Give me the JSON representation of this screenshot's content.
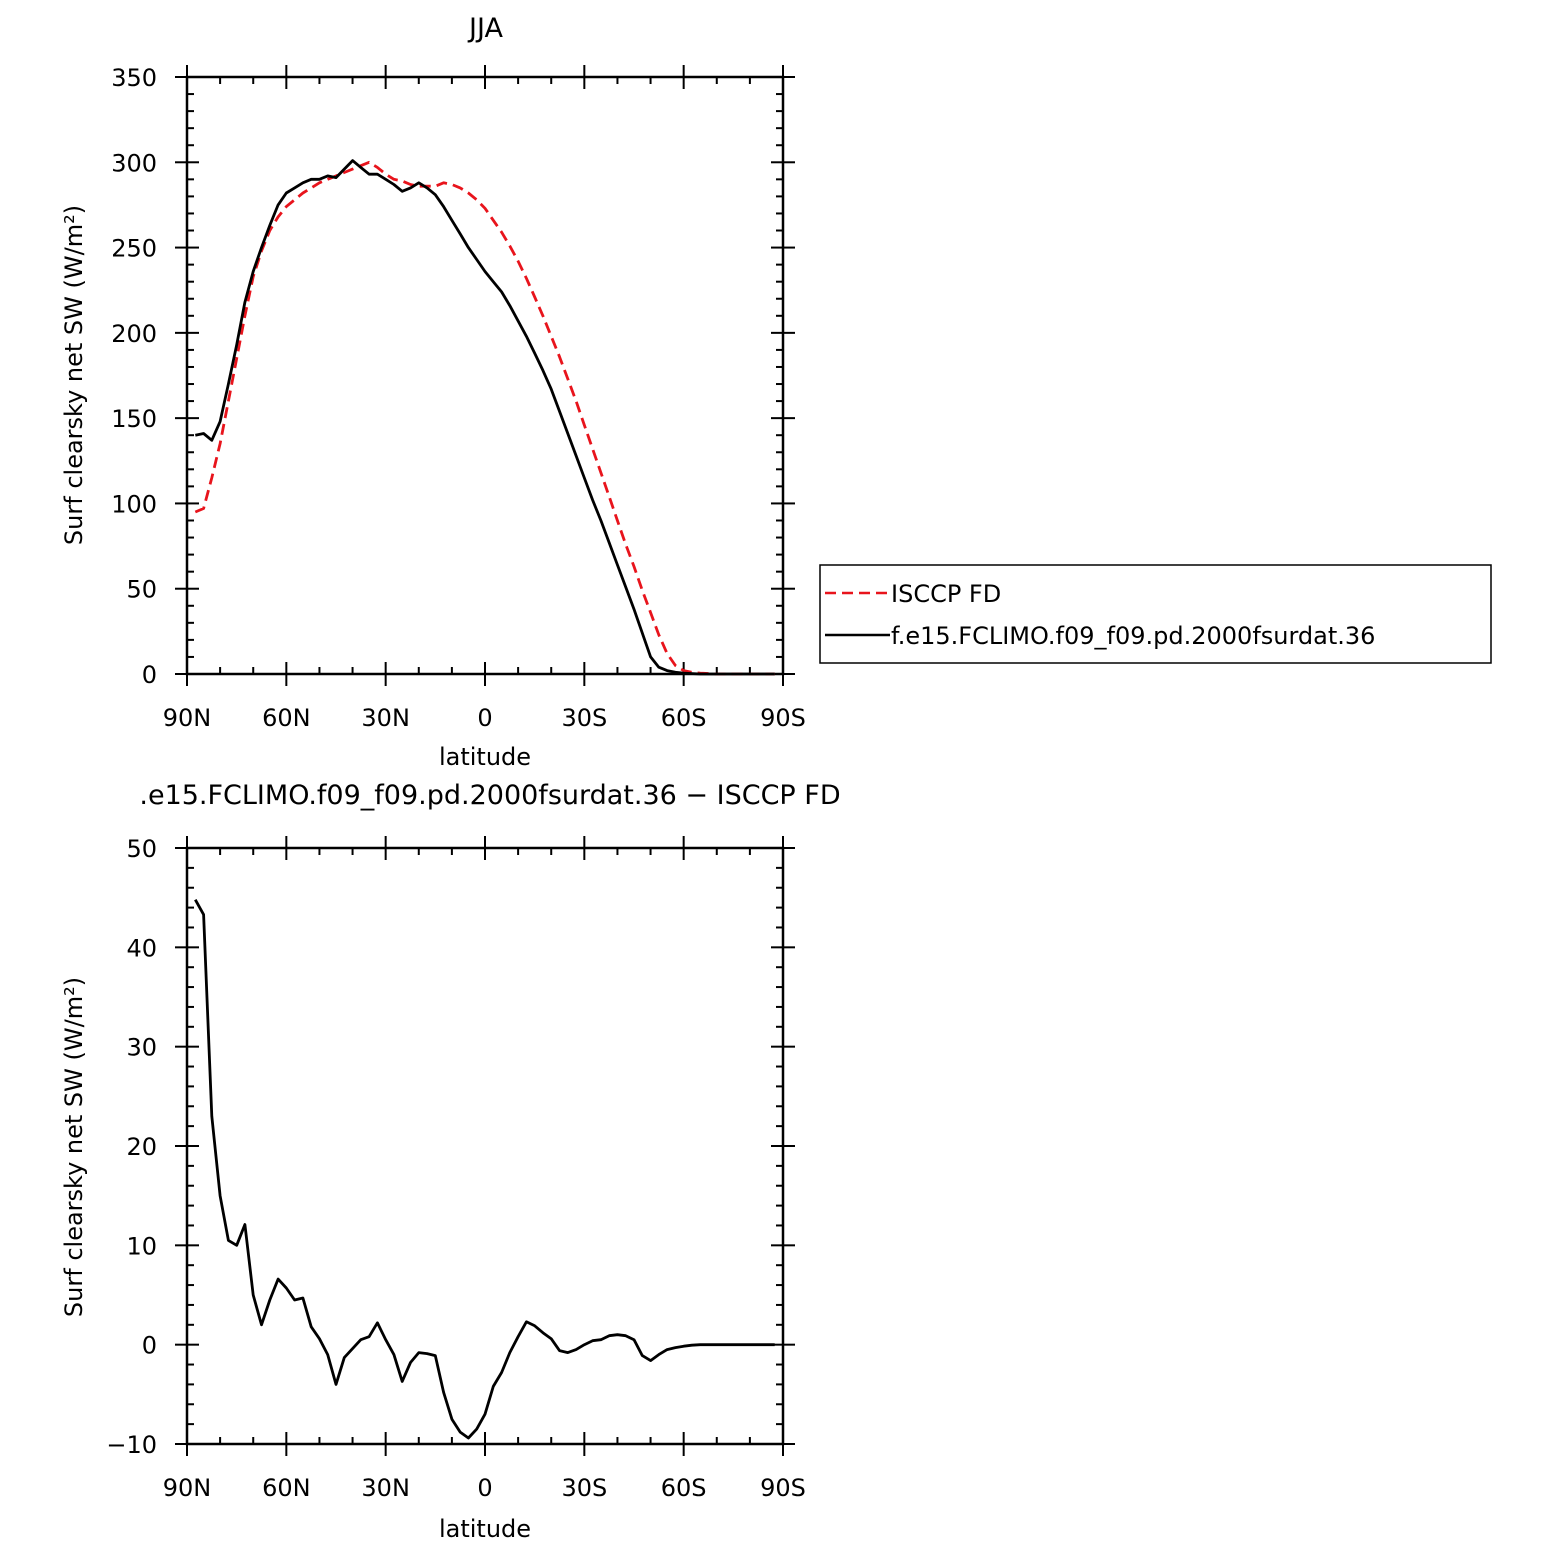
{
  "chart_data": [
    {
      "type": "line",
      "title": "JJA",
      "xlabel": "latitude",
      "ylabel": "Surf clearsky net SW (W/m²)",
      "xlim": [
        90,
        -90
      ],
      "ylim": [
        0,
        350
      ],
      "x_ticks": [
        {
          "value": 90,
          "label": "90N"
        },
        {
          "value": 60,
          "label": "60N"
        },
        {
          "value": 30,
          "label": "30N"
        },
        {
          "value": 0,
          "label": "0"
        },
        {
          "value": -30,
          "label": "30S"
        },
        {
          "value": -60,
          "label": "60S"
        },
        {
          "value": -90,
          "label": "90S"
        }
      ],
      "y_ticks": [
        0,
        50,
        100,
        150,
        200,
        250,
        300,
        350
      ],
      "legend": "right",
      "series": [
        {
          "name": "ISCCP FD",
          "color": "#e8141c",
          "dash": "dashed",
          "points": [
            [
              87.5,
              95
            ],
            [
              85,
              97
            ],
            [
              82.5,
              115
            ],
            [
              80,
              135
            ],
            [
              77.5,
              160
            ],
            [
              75,
              185
            ],
            [
              72.5,
              210
            ],
            [
              70,
              233
            ],
            [
              67.5,
              248
            ],
            [
              65,
              260
            ],
            [
              62.5,
              268
            ],
            [
              60,
              274
            ],
            [
              57.5,
              278
            ],
            [
              55,
              282
            ],
            [
              52.5,
              285
            ],
            [
              50,
              288
            ],
            [
              47.5,
              290
            ],
            [
              45,
              292
            ],
            [
              42.5,
              294
            ],
            [
              40,
              296
            ],
            [
              37.5,
              298
            ],
            [
              35,
              300
            ],
            [
              32.5,
              297
            ],
            [
              30,
              293
            ],
            [
              27.5,
              290
            ],
            [
              25,
              289
            ],
            [
              22.5,
              287
            ],
            [
              20,
              286
            ],
            [
              17.5,
              286
            ],
            [
              15,
              286
            ],
            [
              12.5,
              288
            ],
            [
              10,
              287
            ],
            [
              7.5,
              285
            ],
            [
              5,
              282
            ],
            [
              2.5,
              278
            ],
            [
              0,
              273
            ],
            [
              -2.5,
              266
            ],
            [
              -5,
              259
            ],
            [
              -7.5,
              251
            ],
            [
              -10,
              242
            ],
            [
              -12.5,
              232
            ],
            [
              -15,
              221
            ],
            [
              -17.5,
              210
            ],
            [
              -20,
              198
            ],
            [
              -22.5,
              186
            ],
            [
              -25,
              173
            ],
            [
              -27.5,
              160
            ],
            [
              -30,
              146
            ],
            [
              -32.5,
              132
            ],
            [
              -35,
              118
            ],
            [
              -37.5,
              104
            ],
            [
              -40,
              90
            ],
            [
              -42.5,
              76
            ],
            [
              -45,
              63
            ],
            [
              -47.5,
              49
            ],
            [
              -50,
              36
            ],
            [
              -52.5,
              23
            ],
            [
              -55,
              12
            ],
            [
              -57.5,
              5
            ],
            [
              -60,
              2
            ],
            [
              -62.5,
              1
            ],
            [
              -65,
              0.5
            ],
            [
              -70,
              0
            ],
            [
              -75,
              0
            ],
            [
              -80,
              0
            ],
            [
              -87.5,
              0
            ]
          ]
        },
        {
          "name": "f.e15.FCLIMO.f09_f09.pd.2000fsurdat.36",
          "color": "#000000",
          "dash": "solid",
          "points": [
            [
              87.5,
              140
            ],
            [
              85,
              141
            ],
            [
              82.5,
              137
            ],
            [
              80,
              148
            ],
            [
              77.5,
              170
            ],
            [
              75,
              193
            ],
            [
              72.5,
              218
            ],
            [
              70,
              236
            ],
            [
              67.5,
              250
            ],
            [
              65,
              263
            ],
            [
              62.5,
              275
            ],
            [
              60,
              282
            ],
            [
              57.5,
              285
            ],
            [
              55,
              288
            ],
            [
              52.5,
              290
            ],
            [
              50,
              290
            ],
            [
              47.5,
              292
            ],
            [
              45,
              291
            ],
            [
              42.5,
              296
            ],
            [
              40,
              301
            ],
            [
              37.5,
              297
            ],
            [
              35,
              293
            ],
            [
              32.5,
              293
            ],
            [
              30,
              290
            ],
            [
              27.5,
              287
            ],
            [
              25,
              283
            ],
            [
              22.5,
              285
            ],
            [
              20,
              288
            ],
            [
              17.5,
              285
            ],
            [
              15,
              281
            ],
            [
              12.5,
              274
            ],
            [
              10,
              266
            ],
            [
              7.5,
              258
            ],
            [
              5,
              250
            ],
            [
              2.5,
              243
            ],
            [
              0,
              236
            ],
            [
              -2.5,
              230
            ],
            [
              -5,
              224
            ],
            [
              -7.5,
              216
            ],
            [
              -10,
              207
            ],
            [
              -12.5,
              198
            ],
            [
              -15,
              188
            ],
            [
              -17.5,
              178
            ],
            [
              -20,
              167
            ],
            [
              -22.5,
              154
            ],
            [
              -25,
              141
            ],
            [
              -27.5,
              128
            ],
            [
              -30,
              115
            ],
            [
              -32.5,
              102
            ],
            [
              -35,
              90
            ],
            [
              -37.5,
              77
            ],
            [
              -40,
              64
            ],
            [
              -42.5,
              51
            ],
            [
              -45,
              38
            ],
            [
              -47.5,
              24
            ],
            [
              -50,
              10
            ],
            [
              -52.5,
              4
            ],
            [
              -55,
              2
            ],
            [
              -57.5,
              1
            ],
            [
              -60,
              0.5
            ],
            [
              -65,
              0
            ],
            [
              -70,
              0
            ],
            [
              -80,
              0
            ],
            [
              -87.5,
              0
            ]
          ]
        }
      ]
    },
    {
      "type": "line",
      "title": ".e15.FCLIMO.f09_f09.pd.2000fsurdat.36 − ISCCP FD",
      "xlabel": "latitude",
      "ylabel": "Surf clearsky net SW (W/m²)",
      "xlim": [
        90,
        -90
      ],
      "ylim": [
        -10,
        50
      ],
      "x_ticks": [
        {
          "value": 90,
          "label": "90N"
        },
        {
          "value": 60,
          "label": "60N"
        },
        {
          "value": 30,
          "label": "30N"
        },
        {
          "value": 0,
          "label": "0"
        },
        {
          "value": -30,
          "label": "30S"
        },
        {
          "value": -60,
          "label": "60S"
        },
        {
          "value": -90,
          "label": "90S"
        }
      ],
      "y_tick_labels": [
        "−10",
        "0",
        "10",
        "20",
        "30",
        "40",
        "50"
      ],
      "series": [
        {
          "color": "#000000",
          "dash": "solid",
          "points": [
            [
              87.5,
              44.8
            ],
            [
              85,
              43.3
            ],
            [
              82.5,
              23
            ],
            [
              80,
              15
            ],
            [
              77.5,
              10.5
            ],
            [
              75,
              10
            ],
            [
              72.5,
              12.1
            ],
            [
              70,
              5
            ],
            [
              67.5,
              2
            ],
            [
              65,
              4.5
            ],
            [
              62.5,
              6.6
            ],
            [
              60,
              5.7
            ],
            [
              57.5,
              4.5
            ],
            [
              55,
              4.7
            ],
            [
              52.5,
              1.8
            ],
            [
              50,
              0.6
            ],
            [
              47.5,
              -1
            ],
            [
              45,
              -4
            ],
            [
              42.5,
              -1.3
            ],
            [
              40,
              -0.4
            ],
            [
              37.5,
              0.5
            ],
            [
              35,
              0.8
            ],
            [
              32.5,
              2.2
            ],
            [
              30,
              0.5
            ],
            [
              27.5,
              -1
            ],
            [
              25,
              -3.7
            ],
            [
              22.5,
              -1.8
            ],
            [
              20,
              -0.8
            ],
            [
              17.5,
              -0.9
            ],
            [
              15,
              -1.1
            ],
            [
              12.5,
              -4.8
            ],
            [
              10,
              -7.5
            ],
            [
              7.5,
              -8.8
            ],
            [
              5,
              -9.4
            ],
            [
              2.5,
              -8.5
            ],
            [
              0,
              -7
            ],
            [
              -2.5,
              -4.2
            ],
            [
              -5,
              -2.8
            ],
            [
              -7.5,
              -0.8
            ],
            [
              -10,
              0.8
            ],
            [
              -12.5,
              2.3
            ],
            [
              -15,
              1.9
            ],
            [
              -17.5,
              1.2
            ],
            [
              -20,
              0.6
            ],
            [
              -22.5,
              -0.6
            ],
            [
              -25,
              -0.8
            ],
            [
              -27.5,
              -0.5
            ],
            [
              -30,
              0
            ],
            [
              -32.5,
              0.4
            ],
            [
              -35,
              0.5
            ],
            [
              -37.5,
              0.9
            ],
            [
              -40,
              1
            ],
            [
              -42.5,
              0.9
            ],
            [
              -45,
              0.5
            ],
            [
              -47.5,
              -1.1
            ],
            [
              -50,
              -1.6
            ],
            [
              -52.5,
              -1
            ],
            [
              -55,
              -0.5
            ],
            [
              -57.5,
              -0.3
            ],
            [
              -60,
              -0.15
            ],
            [
              -62.5,
              -0.05
            ],
            [
              -65,
              0
            ],
            [
              -70,
              0
            ],
            [
              -87.5,
              0
            ]
          ]
        }
      ]
    }
  ]
}
